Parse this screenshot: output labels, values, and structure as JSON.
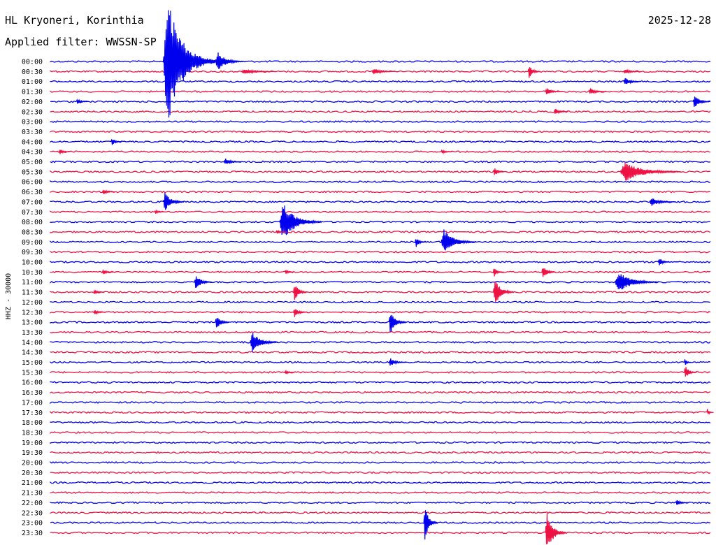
{
  "header": {
    "station": "HL Kryoneri, Korinthia",
    "date": "2025-12-28",
    "filter_text": "Applied filter: WWSSN-SP"
  },
  "chart_data": {
    "type": "line",
    "title": "HL Kryoneri, Korinthia",
    "ylabel": "HHZ - 30000",
    "row_labels": [
      "00:00",
      "00:30",
      "01:00",
      "01:30",
      "02:00",
      "02:30",
      "03:00",
      "03:30",
      "04:00",
      "04:30",
      "05:00",
      "05:30",
      "06:00",
      "06:30",
      "07:00",
      "07:30",
      "08:00",
      "08:30",
      "09:00",
      "09:30",
      "10:00",
      "10:30",
      "11:00",
      "11:30",
      "12:00",
      "12:30",
      "13:00",
      "13:30",
      "14:00",
      "14:30",
      "15:00",
      "15:30",
      "16:00",
      "16:30",
      "17:00",
      "17:30",
      "18:00",
      "18:30",
      "19:00",
      "19:30",
      "20:00",
      "20:30",
      "21:00",
      "21:30",
      "22:00",
      "22:30",
      "23:00",
      "23:30"
    ],
    "series_colors": [
      "#0000ee",
      "#ee1144"
    ],
    "events": [
      {
        "row": 0,
        "minute": 6.5,
        "amp": 95,
        "dur": 3.0
      },
      {
        "row": 0,
        "minute": 9.5,
        "amp": 14,
        "dur": 1.6
      },
      {
        "row": 1,
        "minute": 11.0,
        "amp": 4,
        "dur": 2.0
      },
      {
        "row": 1,
        "minute": 18.5,
        "amp": 5,
        "dur": 1.4
      },
      {
        "row": 1,
        "minute": 27.5,
        "amp": 10,
        "dur": 0.7
      },
      {
        "row": 1,
        "minute": 33.0,
        "amp": 4,
        "dur": 1.0
      },
      {
        "row": 2,
        "minute": 33.0,
        "amp": 6,
        "dur": 1.0
      },
      {
        "row": 3,
        "minute": 28.5,
        "amp": 5,
        "dur": 1.0
      },
      {
        "row": 3,
        "minute": 31.0,
        "amp": 5,
        "dur": 1.0
      },
      {
        "row": 4,
        "minute": 1.5,
        "amp": 4,
        "dur": 0.7
      },
      {
        "row": 4,
        "minute": 37.0,
        "amp": 10,
        "dur": 1.0
      },
      {
        "row": 5,
        "minute": 29.0,
        "amp": 5,
        "dur": 0.8
      },
      {
        "row": 8,
        "minute": 3.5,
        "amp": 6,
        "dur": 0.6
      },
      {
        "row": 9,
        "minute": 0.5,
        "amp": 4,
        "dur": 0.6
      },
      {
        "row": 9,
        "minute": 22.5,
        "amp": 3,
        "dur": 0.6
      },
      {
        "row": 10,
        "minute": 10.0,
        "amp": 5,
        "dur": 1.0
      },
      {
        "row": 11,
        "minute": 25.5,
        "amp": 8,
        "dur": 0.6
      },
      {
        "row": 11,
        "minute": 32.8,
        "amp": 15,
        "dur": 3.5
      },
      {
        "row": 13,
        "minute": 3.0,
        "amp": 4,
        "dur": 0.7
      },
      {
        "row": 14,
        "minute": 6.5,
        "amp": 14,
        "dur": 1.2
      },
      {
        "row": 14,
        "minute": 34.5,
        "amp": 6,
        "dur": 1.5
      },
      {
        "row": 15,
        "minute": 6.0,
        "amp": 3,
        "dur": 0.6
      },
      {
        "row": 16,
        "minute": 13.2,
        "amp": 28,
        "dur": 2.4
      },
      {
        "row": 17,
        "minute": 13.0,
        "amp": 3,
        "dur": 0.6
      },
      {
        "row": 18,
        "minute": 22.5,
        "amp": 18,
        "dur": 2.0
      },
      {
        "row": 18,
        "minute": 21.0,
        "amp": 8,
        "dur": 0.6
      },
      {
        "row": 20,
        "minute": 35.0,
        "amp": 8,
        "dur": 0.6
      },
      {
        "row": 21,
        "minute": 3.0,
        "amp": 4,
        "dur": 0.6
      },
      {
        "row": 21,
        "minute": 13.5,
        "amp": 4,
        "dur": 0.5
      },
      {
        "row": 21,
        "minute": 25.5,
        "amp": 7,
        "dur": 0.6
      },
      {
        "row": 21,
        "minute": 28.3,
        "amp": 10,
        "dur": 0.8
      },
      {
        "row": 22,
        "minute": 8.3,
        "amp": 12,
        "dur": 1.0
      },
      {
        "row": 22,
        "minute": 32.5,
        "amp": 16,
        "dur": 2.5
      },
      {
        "row": 23,
        "minute": 2.5,
        "amp": 4,
        "dur": 0.6
      },
      {
        "row": 23,
        "minute": 14.0,
        "amp": 14,
        "dur": 0.8
      },
      {
        "row": 23,
        "minute": 25.5,
        "amp": 20,
        "dur": 1.2
      },
      {
        "row": 25,
        "minute": 2.5,
        "amp": 4,
        "dur": 0.7
      },
      {
        "row": 25,
        "minute": 14.0,
        "amp": 7,
        "dur": 0.8
      },
      {
        "row": 26,
        "minute": 9.5,
        "amp": 12,
        "dur": 0.8
      },
      {
        "row": 26,
        "minute": 19.5,
        "amp": 18,
        "dur": 1.0
      },
      {
        "row": 28,
        "minute": 11.5,
        "amp": 16,
        "dur": 1.6
      },
      {
        "row": 30,
        "minute": 19.5,
        "amp": 6,
        "dur": 1.0
      },
      {
        "row": 30,
        "minute": 36.5,
        "amp": 6,
        "dur": 0.4
      },
      {
        "row": 31,
        "minute": 13.5,
        "amp": 3,
        "dur": 0.5
      },
      {
        "row": 31,
        "minute": 36.5,
        "amp": 10,
        "dur": 0.7
      },
      {
        "row": 35,
        "minute": 37.8,
        "amp": 5,
        "dur": 0.4
      },
      {
        "row": 44,
        "minute": 36.0,
        "amp": 5,
        "dur": 0.7
      },
      {
        "row": 46,
        "minute": 21.5,
        "amp": 26,
        "dur": 0.8
      },
      {
        "row": 47,
        "minute": 28.5,
        "amp": 30,
        "dur": 1.2
      }
    ]
  }
}
